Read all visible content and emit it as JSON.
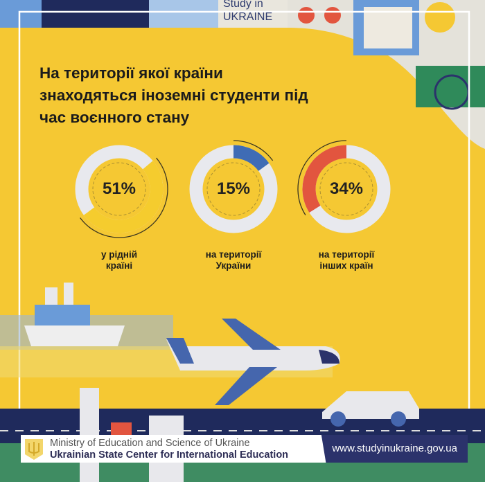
{
  "brand": {
    "line1": "Study in",
    "line2": "UKRAINE"
  },
  "title": [
    "На території якої країни",
    "знаходяться іноземні студенти під",
    "час воєнного стану"
  ],
  "chart_data": {
    "type": "pie",
    "title": "На території якої країни знаходяться іноземні студенти під час воєнного стану",
    "categories": [
      "у рідній країні",
      "на території України",
      "на території інших країн"
    ],
    "values": [
      51,
      15,
      34
    ],
    "unit": "%",
    "series_colors": [
      "#f5cc2e",
      "#3f6cb5",
      "#e2553f"
    ],
    "items": [
      {
        "value_label": "51%",
        "label": [
          "у рідній",
          "країні"
        ]
      },
      {
        "value_label": "15%",
        "label": [
          "на території",
          "України"
        ]
      },
      {
        "value_label": "34%",
        "label": [
          "на території",
          "інших країн"
        ]
      }
    ]
  },
  "footer": {
    "ministry": "Ministry of Education and Science of Ukraine",
    "center": "Ukrainian State Center for International Education",
    "url": "www.studyinukraine.gov.ua"
  }
}
